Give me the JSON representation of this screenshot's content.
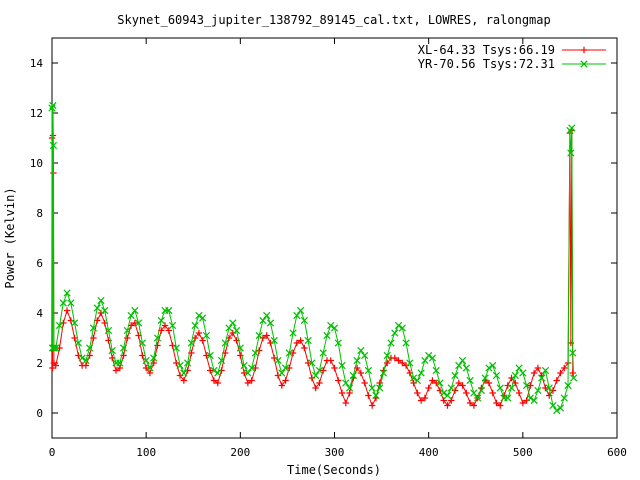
{
  "chart_data": {
    "type": "line",
    "title": "Skynet_60943_jupiter_138792_89145_cal.txt, LOWRES, ralongmap",
    "xlabel": "Time(Seconds)",
    "ylabel": "Power (Kelvin)",
    "xlim": [
      0,
      600
    ],
    "ylim": [
      -1,
      15
    ],
    "x_ticks": [
      0,
      100,
      200,
      300,
      400,
      500,
      600
    ],
    "y_ticks": [
      0,
      2,
      4,
      6,
      8,
      10,
      12,
      14
    ],
    "grid": false,
    "legend_position": "top-right",
    "series": [
      {
        "name": "XL-64.33 Tsys:66.19",
        "color": "#ff0000",
        "marker": "+",
        "points": [
          [
            0,
            11.0
          ],
          [
            0.5,
            1.8
          ],
          [
            1,
            11.1
          ],
          [
            1.5,
            9.6
          ],
          [
            2,
            2.0
          ],
          [
            4,
            1.9
          ],
          [
            8,
            2.6
          ],
          [
            12,
            3.6
          ],
          [
            16,
            4.1
          ],
          [
            20,
            3.7
          ],
          [
            24,
            3.0
          ],
          [
            28,
            2.3
          ],
          [
            32,
            1.9
          ],
          [
            36,
            1.9
          ],
          [
            40,
            2.3
          ],
          [
            44,
            3.0
          ],
          [
            48,
            3.7
          ],
          [
            52,
            4.0
          ],
          [
            56,
            3.6
          ],
          [
            60,
            2.9
          ],
          [
            64,
            2.2
          ],
          [
            68,
            1.7
          ],
          [
            72,
            1.8
          ],
          [
            76,
            2.3
          ],
          [
            80,
            3.0
          ],
          [
            84,
            3.5
          ],
          [
            88,
            3.6
          ],
          [
            92,
            3.1
          ],
          [
            96,
            2.3
          ],
          [
            100,
            1.8
          ],
          [
            104,
            1.6
          ],
          [
            108,
            2.0
          ],
          [
            112,
            2.7
          ],
          [
            116,
            3.3
          ],
          [
            120,
            3.5
          ],
          [
            124,
            3.3
          ],
          [
            128,
            2.7
          ],
          [
            132,
            2.0
          ],
          [
            136,
            1.5
          ],
          [
            140,
            1.3
          ],
          [
            144,
            1.7
          ],
          [
            148,
            2.4
          ],
          [
            152,
            3.0
          ],
          [
            156,
            3.2
          ],
          [
            160,
            2.9
          ],
          [
            164,
            2.3
          ],
          [
            168,
            1.7
          ],
          [
            172,
            1.3
          ],
          [
            176,
            1.2
          ],
          [
            180,
            1.7
          ],
          [
            184,
            2.4
          ],
          [
            188,
            3.0
          ],
          [
            192,
            3.2
          ],
          [
            196,
            2.9
          ],
          [
            200,
            2.3
          ],
          [
            204,
            1.6
          ],
          [
            208,
            1.2
          ],
          [
            212,
            1.3
          ],
          [
            216,
            1.8
          ],
          [
            220,
            2.5
          ],
          [
            224,
            3.0
          ],
          [
            228,
            3.1
          ],
          [
            232,
            2.8
          ],
          [
            236,
            2.2
          ],
          [
            240,
            1.5
          ],
          [
            244,
            1.1
          ],
          [
            248,
            1.3
          ],
          [
            252,
            1.8
          ],
          [
            256,
            2.4
          ],
          [
            260,
            2.8
          ],
          [
            264,
            2.9
          ],
          [
            268,
            2.6
          ],
          [
            272,
            2.0
          ],
          [
            276,
            1.4
          ],
          [
            280,
            1.0
          ],
          [
            284,
            1.2
          ],
          [
            288,
            1.7
          ],
          [
            292,
            2.1
          ],
          [
            296,
            2.1
          ],
          [
            300,
            1.8
          ],
          [
            304,
            1.3
          ],
          [
            308,
            0.8
          ],
          [
            312,
            0.4
          ],
          [
            316,
            0.8
          ],
          [
            320,
            1.4
          ],
          [
            324,
            1.8
          ],
          [
            328,
            1.6
          ],
          [
            332,
            1.2
          ],
          [
            336,
            0.7
          ],
          [
            340,
            0.3
          ],
          [
            344,
            0.6
          ],
          [
            348,
            1.2
          ],
          [
            352,
            1.7
          ],
          [
            356,
            2.0
          ],
          [
            360,
            2.2
          ],
          [
            364,
            2.2
          ],
          [
            368,
            2.1
          ],
          [
            372,
            2.0
          ],
          [
            376,
            1.9
          ],
          [
            380,
            1.6
          ],
          [
            384,
            1.2
          ],
          [
            388,
            0.8
          ],
          [
            392,
            0.5
          ],
          [
            396,
            0.6
          ],
          [
            400,
            1.0
          ],
          [
            404,
            1.3
          ],
          [
            408,
            1.2
          ],
          [
            412,
            0.9
          ],
          [
            416,
            0.5
          ],
          [
            420,
            0.3
          ],
          [
            424,
            0.5
          ],
          [
            428,
            0.9
          ],
          [
            432,
            1.2
          ],
          [
            436,
            1.1
          ],
          [
            440,
            0.8
          ],
          [
            444,
            0.4
          ],
          [
            448,
            0.3
          ],
          [
            452,
            0.6
          ],
          [
            456,
            1.0
          ],
          [
            460,
            1.3
          ],
          [
            464,
            1.2
          ],
          [
            468,
            0.8
          ],
          [
            472,
            0.4
          ],
          [
            476,
            0.3
          ],
          [
            480,
            0.7
          ],
          [
            484,
            1.1
          ],
          [
            488,
            1.4
          ],
          [
            492,
            1.2
          ],
          [
            496,
            0.8
          ],
          [
            500,
            0.4
          ],
          [
            504,
            0.5
          ],
          [
            508,
            1.1
          ],
          [
            512,
            1.6
          ],
          [
            516,
            1.8
          ],
          [
            520,
            1.5
          ],
          [
            524,
            1.0
          ],
          [
            528,
            0.7
          ],
          [
            532,
            0.9
          ],
          [
            536,
            1.3
          ],
          [
            540,
            1.6
          ],
          [
            544,
            1.8
          ],
          [
            548,
            2.0
          ],
          [
            550,
            11.2
          ],
          [
            551,
            2.8
          ],
          [
            552,
            11.3
          ],
          [
            553,
            1.6
          ]
        ]
      },
      {
        "name": "YR-70.56 Tsys:72.31",
        "color": "#00c000",
        "marker": "x",
        "points": [
          [
            0,
            12.2
          ],
          [
            0.5,
            2.6
          ],
          [
            1,
            12.3
          ],
          [
            1.5,
            10.7
          ],
          [
            2,
            2.6
          ],
          [
            4,
            2.6
          ],
          [
            8,
            3.5
          ],
          [
            12,
            4.4
          ],
          [
            16,
            4.8
          ],
          [
            20,
            4.4
          ],
          [
            24,
            3.6
          ],
          [
            28,
            2.8
          ],
          [
            32,
            2.2
          ],
          [
            36,
            2.1
          ],
          [
            40,
            2.6
          ],
          [
            44,
            3.4
          ],
          [
            48,
            4.2
          ],
          [
            52,
            4.5
          ],
          [
            56,
            4.1
          ],
          [
            60,
            3.3
          ],
          [
            64,
            2.5
          ],
          [
            68,
            2.0
          ],
          [
            72,
            2.0
          ],
          [
            76,
            2.6
          ],
          [
            80,
            3.3
          ],
          [
            84,
            3.9
          ],
          [
            88,
            4.1
          ],
          [
            92,
            3.6
          ],
          [
            96,
            2.8
          ],
          [
            100,
            2.1
          ],
          [
            104,
            1.8
          ],
          [
            108,
            2.2
          ],
          [
            112,
            3.0
          ],
          [
            116,
            3.7
          ],
          [
            120,
            4.1
          ],
          [
            124,
            4.1
          ],
          [
            128,
            3.5
          ],
          [
            132,
            2.6
          ],
          [
            136,
            1.9
          ],
          [
            140,
            1.6
          ],
          [
            144,
            2.0
          ],
          [
            148,
            2.8
          ],
          [
            152,
            3.5
          ],
          [
            156,
            3.9
          ],
          [
            160,
            3.8
          ],
          [
            164,
            3.1
          ],
          [
            168,
            2.3
          ],
          [
            172,
            1.7
          ],
          [
            176,
            1.6
          ],
          [
            180,
            2.1
          ],
          [
            184,
            2.8
          ],
          [
            188,
            3.4
          ],
          [
            192,
            3.6
          ],
          [
            196,
            3.3
          ],
          [
            200,
            2.6
          ],
          [
            204,
            1.9
          ],
          [
            208,
            1.6
          ],
          [
            212,
            1.8
          ],
          [
            216,
            2.4
          ],
          [
            220,
            3.1
          ],
          [
            224,
            3.7
          ],
          [
            228,
            3.9
          ],
          [
            232,
            3.6
          ],
          [
            236,
            2.9
          ],
          [
            240,
            2.1
          ],
          [
            244,
            1.6
          ],
          [
            248,
            1.8
          ],
          [
            252,
            2.4
          ],
          [
            256,
            3.2
          ],
          [
            260,
            3.9
          ],
          [
            264,
            4.1
          ],
          [
            268,
            3.7
          ],
          [
            272,
            2.9
          ],
          [
            276,
            2.0
          ],
          [
            280,
            1.5
          ],
          [
            284,
            1.7
          ],
          [
            288,
            2.4
          ],
          [
            292,
            3.1
          ],
          [
            296,
            3.5
          ],
          [
            300,
            3.4
          ],
          [
            304,
            2.8
          ],
          [
            308,
            1.9
          ],
          [
            312,
            1.2
          ],
          [
            316,
            1.0
          ],
          [
            320,
            1.5
          ],
          [
            324,
            2.1
          ],
          [
            328,
            2.5
          ],
          [
            332,
            2.3
          ],
          [
            336,
            1.7
          ],
          [
            340,
            1.0
          ],
          [
            344,
            0.7
          ],
          [
            348,
            1.0
          ],
          [
            352,
            1.6
          ],
          [
            356,
            2.3
          ],
          [
            360,
            2.8
          ],
          [
            364,
            3.2
          ],
          [
            368,
            3.5
          ],
          [
            372,
            3.4
          ],
          [
            376,
            2.8
          ],
          [
            380,
            2.0
          ],
          [
            384,
            1.4
          ],
          [
            388,
            1.3
          ],
          [
            392,
            1.6
          ],
          [
            396,
            2.1
          ],
          [
            400,
            2.3
          ],
          [
            404,
            2.2
          ],
          [
            408,
            1.7
          ],
          [
            412,
            1.2
          ],
          [
            416,
            0.8
          ],
          [
            420,
            0.7
          ],
          [
            424,
            1.0
          ],
          [
            428,
            1.5
          ],
          [
            432,
            1.9
          ],
          [
            436,
            2.1
          ],
          [
            440,
            1.8
          ],
          [
            444,
            1.3
          ],
          [
            448,
            0.8
          ],
          [
            452,
            0.6
          ],
          [
            456,
            0.9
          ],
          [
            460,
            1.4
          ],
          [
            464,
            1.8
          ],
          [
            468,
            1.9
          ],
          [
            472,
            1.5
          ],
          [
            476,
            1.0
          ],
          [
            480,
            0.6
          ],
          [
            484,
            0.6
          ],
          [
            488,
            1.0
          ],
          [
            492,
            1.5
          ],
          [
            496,
            1.8
          ],
          [
            500,
            1.6
          ],
          [
            504,
            1.1
          ],
          [
            508,
            0.6
          ],
          [
            512,
            0.5
          ],
          [
            516,
            0.9
          ],
          [
            520,
            1.4
          ],
          [
            524,
            1.7
          ],
          [
            528,
            1.0
          ],
          [
            532,
            0.3
          ],
          [
            536,
            0.1
          ],
          [
            540,
            0.2
          ],
          [
            544,
            0.6
          ],
          [
            548,
            1.1
          ],
          [
            550,
            11.3
          ],
          [
            551,
            10.4
          ],
          [
            552,
            11.4
          ],
          [
            553,
            2.4
          ],
          [
            554,
            1.4
          ]
        ]
      }
    ]
  }
}
